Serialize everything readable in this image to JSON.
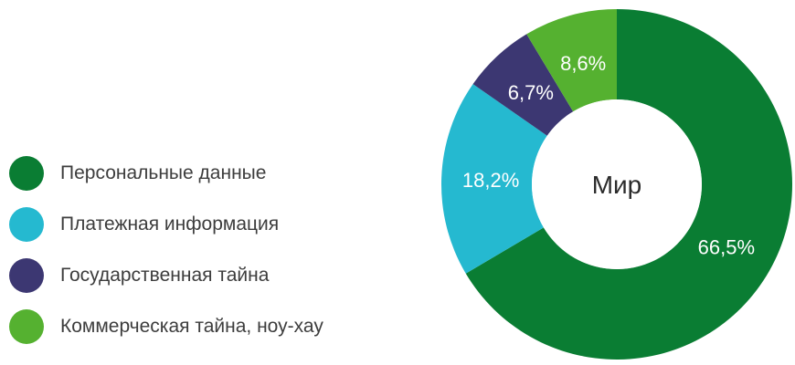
{
  "chart_data": {
    "type": "pie",
    "center_label": "Мир",
    "slices": [
      {
        "label": "Персональные данные",
        "value": 66.5,
        "value_label": "66,5%",
        "color": "#0a7d33"
      },
      {
        "label": "Платежная информация",
        "value": 18.2,
        "value_label": "18,2%",
        "color": "#25b9d0"
      },
      {
        "label": "Государственная тайна",
        "value": 6.7,
        "value_label": "6,7%",
        "color": "#3c3772"
      },
      {
        "label": "Коммерческая тайна, ноу-хау",
        "value": 8.6,
        "value_label": "8,6%",
        "color": "#55b130"
      }
    ],
    "start_angle": "12 o'clock",
    "direction": "clockwise",
    "legend_position": "left"
  }
}
